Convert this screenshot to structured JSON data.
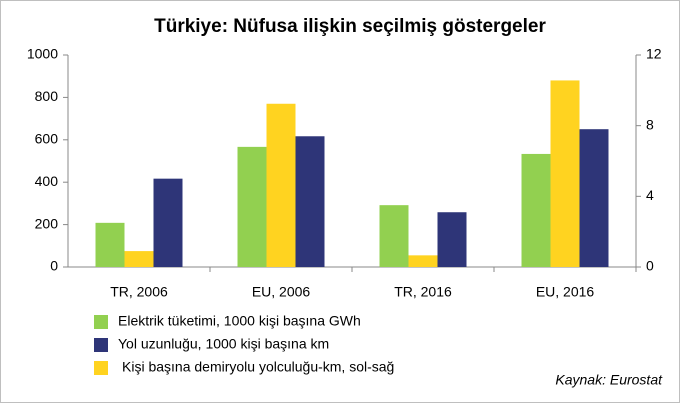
{
  "chart_data": {
    "type": "bar",
    "title": "Türkiye: Nüfusa ilişkin seçilmiş göstergeler",
    "source": "Kaynak: Eurostat",
    "categories": [
      "TR, 2006",
      "EU, 2006",
      "TR, 2016",
      "EU, 2016"
    ],
    "series": [
      {
        "name": "Elektrik tüketimi, 1000 kişi başına GWh",
        "color": "#92d050",
        "axis": "y2",
        "values": [
          2.5,
          6.8,
          3.5,
          6.4
        ]
      },
      {
        "name": "Yol uzunluğu, 1000 kişi başına km",
        "color": "#2e3578",
        "axis": "y2",
        "values": [
          5.0,
          7.4,
          3.1,
          7.8
        ]
      },
      {
        "name": "Kişi başına demiryolu yolculuğu-km, sol-sağ",
        "color": "#ffd320",
        "axis": "y",
        "values": [
          75,
          770,
          55,
          880
        ]
      }
    ],
    "ylim": [
      0,
      1000
    ],
    "yticks": [
      0,
      200,
      400,
      600,
      800,
      1000
    ],
    "y2lim": [
      0,
      12
    ],
    "y2ticks": [
      0,
      4,
      8,
      12
    ]
  }
}
